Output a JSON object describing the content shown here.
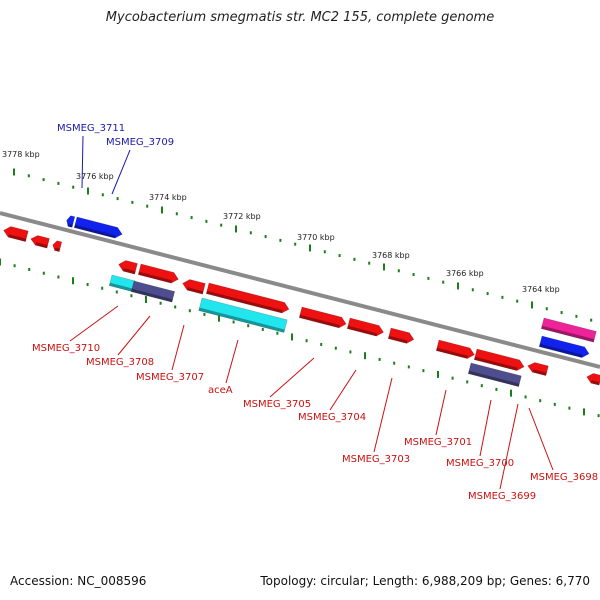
{
  "title": "Mycobacterium smegmatis str. MC2 155, complete genome",
  "footer": {
    "accession": "Accession: NC_008596",
    "topology": "Topology: circular; Length: 6,988,209 bp; Genes: 6,770"
  },
  "colors": {
    "backbone": "#8a8a8a",
    "tick": "#1a7f1a",
    "gene_forward": "#ee1111",
    "gene_reverse_blue": "#1122ee",
    "cyan": "#22e6ee",
    "slate": "#4e4e8e",
    "magenta": "#ee2299",
    "label_top": "#1a1aaa",
    "label_bottom": "#cc1111"
  },
  "ruler_labels": [
    "3778 kbp",
    "3776 kbp",
    "3774 kbp",
    "3772 kbp",
    "3770 kbp",
    "3768 kbp",
    "3766 kbp",
    "3764 kbp"
  ],
  "gene_labels_top": [
    "MSMEG_3711",
    "MSMEG_3709"
  ],
  "gene_labels_bottom": [
    "MSMEG_3710",
    "MSMEG_3708",
    "MSMEG_3707",
    "aceA",
    "MSMEG_3705",
    "MSMEG_3704",
    "MSMEG_3703",
    "MSMEG_3701",
    "MSMEG_3700",
    "MSMEG_3699",
    "MSMEG_3698"
  ]
}
